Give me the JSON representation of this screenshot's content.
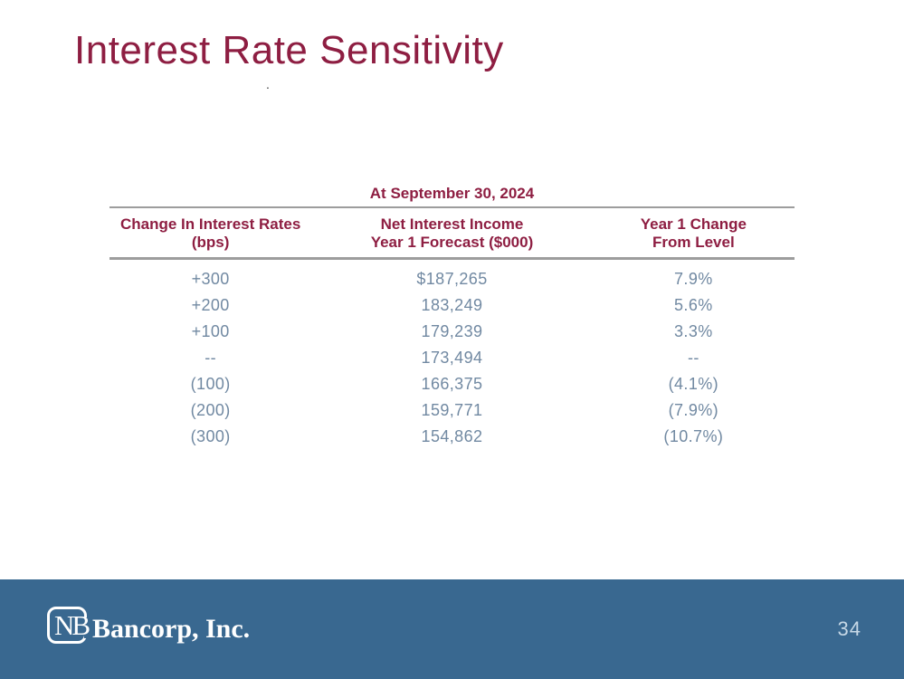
{
  "slide": {
    "title": "Interest Rate Sensitivity",
    "stray_mark": "."
  },
  "table": {
    "caption": "At September 30, 2024",
    "columns": [
      {
        "line1": "Change In Interest Rates",
        "line2": "(bps)"
      },
      {
        "line1": "Net Interest Income",
        "line2": "Year 1 Forecast ($000)"
      },
      {
        "line1": "Year 1 Change",
        "line2": "From Level"
      }
    ],
    "rows": [
      [
        "+300",
        "$187,265",
        "7.9%"
      ],
      [
        "+200",
        "183,249",
        "5.6%"
      ],
      [
        "+100",
        "179,239",
        "3.3%"
      ],
      [
        "--",
        "173,494",
        "--"
      ],
      [
        "(100)",
        "166,375",
        "(4.1%)"
      ],
      [
        "(200)",
        "159,771",
        "(7.9%)"
      ],
      [
        "(300)",
        "154,862",
        "(10.7%)"
      ]
    ]
  },
  "footer": {
    "logo_monogram": "NB",
    "logo_name": "Bancorp, Inc.",
    "page_number": "34"
  },
  "colors": {
    "maroon": "#8E1E42",
    "slate": "#7189A2",
    "footer_blue": "#396890",
    "rule_gray": "#9D9D9D",
    "page_number": "#C6D8E6",
    "logo_white": "#FFFFFF"
  }
}
